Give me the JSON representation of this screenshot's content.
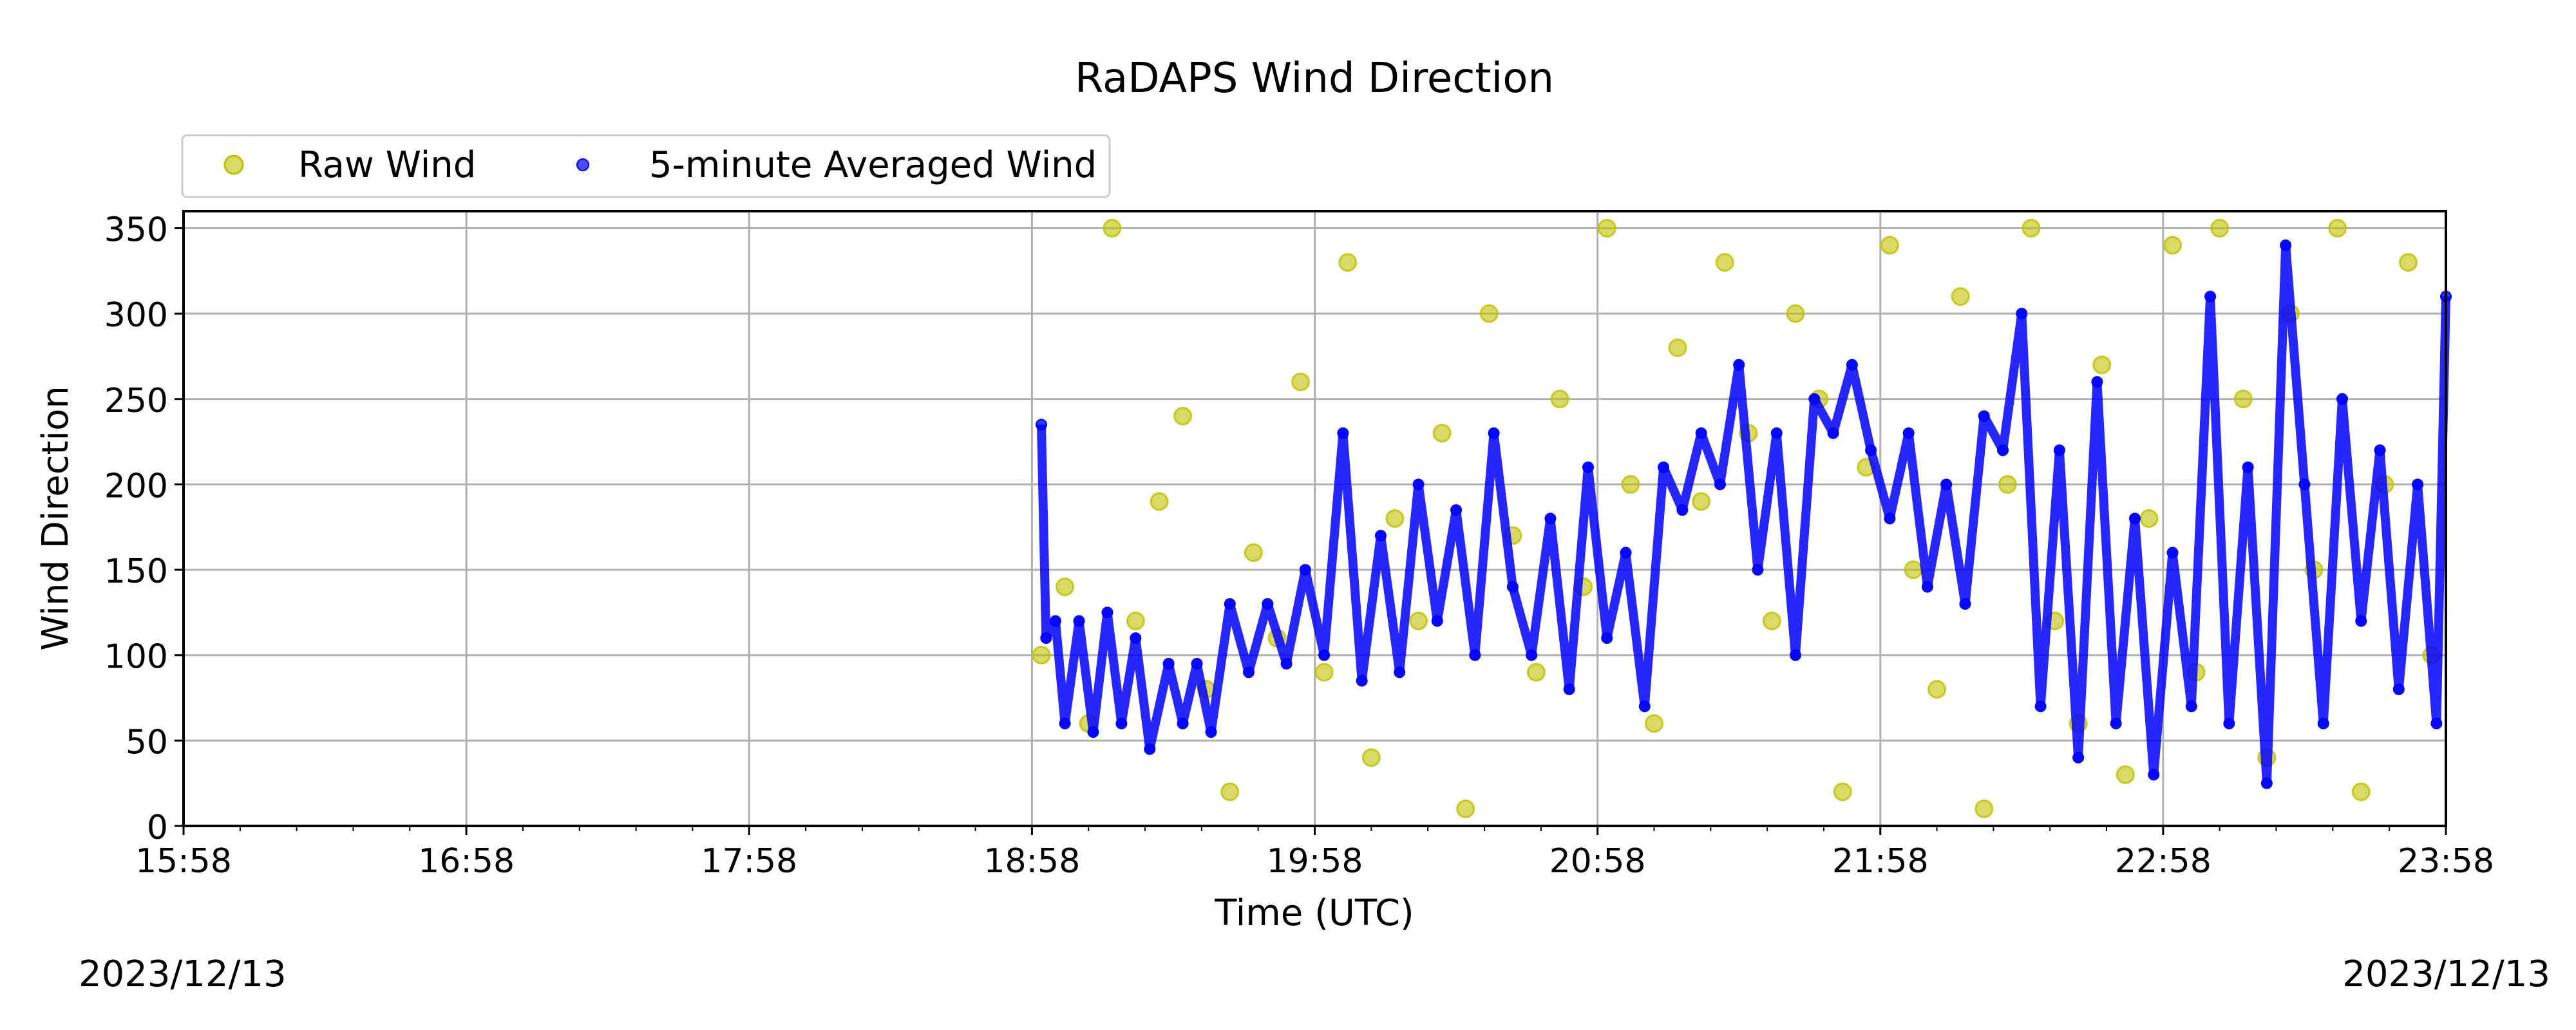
{
  "chart_data": {
    "type": "scatter",
    "title": "RaDAPS Wind Direction",
    "xlabel": "Time (UTC)",
    "ylabel": "Wind Direction",
    "x_tick_labels": [
      "15:58",
      "16:58",
      "17:58",
      "18:58",
      "19:58",
      "20:58",
      "21:58",
      "22:58",
      "23:58"
    ],
    "y_ticks": [
      0,
      50,
      100,
      150,
      200,
      250,
      300,
      350
    ],
    "xlim": [
      "15:58",
      "23:58"
    ],
    "ylim": [
      0,
      360
    ],
    "grid": true,
    "legend_position": "top-left, outside above plot",
    "start_date_label": "2023/12/13",
    "end_date_label": "2023/12/13",
    "series": [
      {
        "name": "Raw Wind",
        "color": "#bfbf00",
        "marker": "circle",
        "points_sampled": [
          [
            "19:00",
            100
          ],
          [
            "19:05",
            140
          ],
          [
            "19:10",
            60
          ],
          [
            "19:15",
            350
          ],
          [
            "19:20",
            120
          ],
          [
            "19:25",
            190
          ],
          [
            "19:30",
            240
          ],
          [
            "19:35",
            80
          ],
          [
            "19:40",
            20
          ],
          [
            "19:45",
            160
          ],
          [
            "19:50",
            110
          ],
          [
            "19:55",
            260
          ],
          [
            "20:00",
            90
          ],
          [
            "20:05",
            330
          ],
          [
            "20:10",
            40
          ],
          [
            "20:15",
            180
          ],
          [
            "20:20",
            120
          ],
          [
            "20:25",
            230
          ],
          [
            "20:30",
            10
          ],
          [
            "20:35",
            300
          ],
          [
            "20:40",
            170
          ],
          [
            "20:45",
            90
          ],
          [
            "20:50",
            250
          ],
          [
            "20:55",
            140
          ],
          [
            "21:00",
            350
          ],
          [
            "21:05",
            200
          ],
          [
            "21:10",
            60
          ],
          [
            "21:15",
            280
          ],
          [
            "21:20",
            190
          ],
          [
            "21:25",
            330
          ],
          [
            "21:30",
            230
          ],
          [
            "21:35",
            120
          ],
          [
            "21:40",
            300
          ],
          [
            "21:45",
            250
          ],
          [
            "21:50",
            20
          ],
          [
            "21:55",
            210
          ],
          [
            "22:00",
            340
          ],
          [
            "22:05",
            150
          ],
          [
            "22:10",
            80
          ],
          [
            "22:15",
            310
          ],
          [
            "22:20",
            10
          ],
          [
            "22:25",
            200
          ],
          [
            "22:30",
            350
          ],
          [
            "22:35",
            120
          ],
          [
            "22:40",
            60
          ],
          [
            "22:45",
            270
          ],
          [
            "22:50",
            30
          ],
          [
            "22:55",
            180
          ],
          [
            "23:00",
            340
          ],
          [
            "23:05",
            90
          ],
          [
            "23:10",
            350
          ],
          [
            "23:15",
            250
          ],
          [
            "23:20",
            40
          ],
          [
            "23:25",
            300
          ],
          [
            "23:30",
            150
          ],
          [
            "23:35",
            350
          ],
          [
            "23:40",
            20
          ],
          [
            "23:45",
            200
          ],
          [
            "23:50",
            330
          ],
          [
            "23:55",
            100
          ]
        ]
      },
      {
        "name": "5-minute Averaged Wind",
        "color": "#0000ff",
        "marker": "circle",
        "points_sampled": [
          [
            "19:00",
            235
          ],
          [
            "19:01",
            110
          ],
          [
            "19:03",
            120
          ],
          [
            "19:05",
            60
          ],
          [
            "19:08",
            120
          ],
          [
            "19:11",
            55
          ],
          [
            "19:14",
            125
          ],
          [
            "19:17",
            60
          ],
          [
            "19:20",
            110
          ],
          [
            "19:23",
            45
          ],
          [
            "19:27",
            95
          ],
          [
            "19:30",
            60
          ],
          [
            "19:33",
            95
          ],
          [
            "19:36",
            55
          ],
          [
            "19:40",
            130
          ],
          [
            "19:44",
            90
          ],
          [
            "19:48",
            130
          ],
          [
            "19:52",
            95
          ],
          [
            "19:56",
            150
          ],
          [
            "20:00",
            100
          ],
          [
            "20:04",
            230
          ],
          [
            "20:08",
            85
          ],
          [
            "20:12",
            170
          ],
          [
            "20:16",
            90
          ],
          [
            "20:20",
            200
          ],
          [
            "20:24",
            120
          ],
          [
            "20:28",
            185
          ],
          [
            "20:32",
            100
          ],
          [
            "20:36",
            230
          ],
          [
            "20:40",
            140
          ],
          [
            "20:44",
            100
          ],
          [
            "20:48",
            180
          ],
          [
            "20:52",
            80
          ],
          [
            "20:56",
            210
          ],
          [
            "21:00",
            110
          ],
          [
            "21:04",
            160
          ],
          [
            "21:08",
            70
          ],
          [
            "21:12",
            210
          ],
          [
            "21:16",
            185
          ],
          [
            "21:20",
            230
          ],
          [
            "21:24",
            200
          ],
          [
            "21:28",
            270
          ],
          [
            "21:32",
            150
          ],
          [
            "21:36",
            230
          ],
          [
            "21:40",
            100
          ],
          [
            "21:44",
            250
          ],
          [
            "21:48",
            230
          ],
          [
            "21:52",
            270
          ],
          [
            "21:56",
            220
          ],
          [
            "22:00",
            180
          ],
          [
            "22:04",
            230
          ],
          [
            "22:08",
            140
          ],
          [
            "22:12",
            200
          ],
          [
            "22:16",
            130
          ],
          [
            "22:20",
            240
          ],
          [
            "22:24",
            220
          ],
          [
            "22:28",
            300
          ],
          [
            "22:32",
            70
          ],
          [
            "22:36",
            220
          ],
          [
            "22:40",
            40
          ],
          [
            "22:44",
            260
          ],
          [
            "22:48",
            60
          ],
          [
            "22:52",
            180
          ],
          [
            "22:56",
            30
          ],
          [
            "23:00",
            160
          ],
          [
            "23:04",
            70
          ],
          [
            "23:08",
            310
          ],
          [
            "23:12",
            60
          ],
          [
            "23:16",
            210
          ],
          [
            "23:20",
            25
          ],
          [
            "23:24",
            340
          ],
          [
            "23:28",
            200
          ],
          [
            "23:32",
            60
          ],
          [
            "23:36",
            250
          ],
          [
            "23:40",
            120
          ],
          [
            "23:44",
            220
          ],
          [
            "23:48",
            80
          ],
          [
            "23:52",
            200
          ],
          [
            "23:56",
            60
          ],
          [
            "23:58",
            310
          ]
        ]
      }
    ]
  }
}
